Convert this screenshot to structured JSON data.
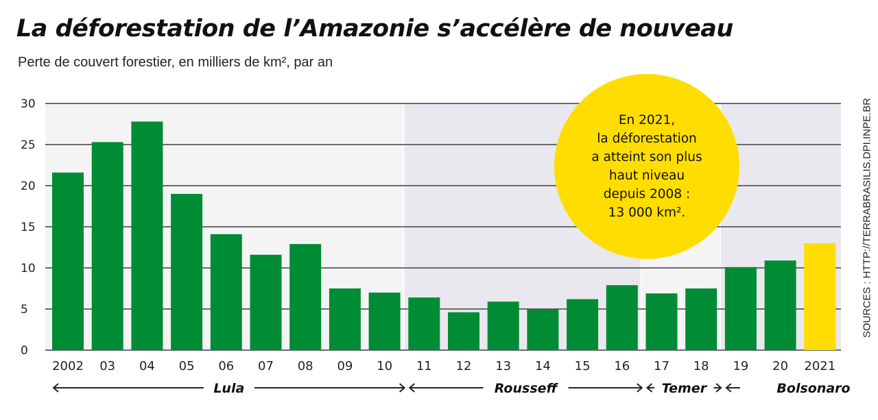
{
  "title": "La déforestation de l’Amazonie s’accélère de nouveau",
  "subtitle": "Perte de couvert forestier, en milliers de km², par an",
  "source": "SOURCES : HTTP://TERRABRASILIS.DPI.INPE.BR",
  "callout": {
    "lines": [
      "En 2021,",
      "la déforestation",
      "a atteint son plus",
      "haut niveau",
      "depuis 2008 :",
      "13 000 km²."
    ]
  },
  "colors": {
    "bar": "#008c35",
    "highlight": "#ffdd00",
    "period_light": "#f4f4f5",
    "period_dark": "#e9e8ee",
    "grid": "#6b6b6b"
  },
  "chart_data": {
    "type": "bar",
    "title": "La déforestation de l’Amazonie s’accélère de nouveau",
    "subtitle": "Perte de couvert forestier, en milliers de km², par an",
    "xlabel": "",
    "ylabel": "",
    "categories": [
      "2002",
      "03",
      "04",
      "05",
      "06",
      "07",
      "08",
      "09",
      "10",
      "11",
      "12",
      "13",
      "14",
      "15",
      "16",
      "17",
      "18",
      "19",
      "20",
      "2021"
    ],
    "values": [
      21.6,
      25.3,
      27.8,
      19.0,
      14.1,
      11.6,
      12.9,
      7.5,
      7.0,
      6.4,
      4.6,
      5.9,
      5.0,
      6.2,
      7.9,
      6.9,
      7.5,
      10.1,
      10.9,
      13.0
    ],
    "highlight_category": "2021",
    "ylim": [
      0,
      30
    ],
    "yticks": [
      "0",
      "5",
      "10",
      "15",
      "20",
      "25",
      "30"
    ],
    "ytick_values": [
      0,
      5,
      10,
      15,
      20,
      25,
      30
    ],
    "grid": true,
    "periods": [
      {
        "label": "Lula",
        "start": "2002",
        "end": "10",
        "arrows": "←  →",
        "shade": "light"
      },
      {
        "label": "Rousseff",
        "start": "11",
        "end": "16",
        "shade": "dark"
      },
      {
        "label": "Temer",
        "start": "17",
        "end": "18",
        "shade": "light"
      },
      {
        "label": "Bolsonaro",
        "start": "19",
        "end": "2021",
        "shade": "dark"
      }
    ]
  }
}
